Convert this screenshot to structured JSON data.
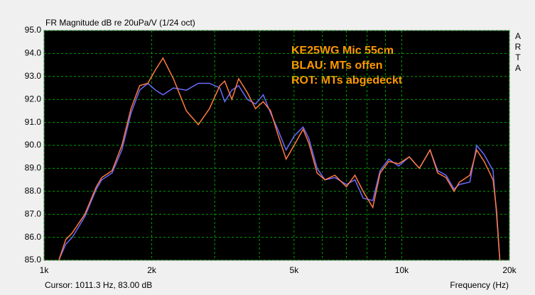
{
  "chart_data": {
    "type": "line",
    "title": "FR Magnitude dB re 20uPa/V (1/24 oct)",
    "annotations": [
      "KE25WG Mic 55cm",
      "BLAU: MTs offen",
      "ROT: MTs abgedeckt"
    ],
    "cursor": "Cursor: 1011.3 Hz, 83.00 dB",
    "x_label": "Frequency (Hz)",
    "side_label": "ARTA",
    "x_scale": "log",
    "grid": true,
    "grid_color": "#00a000",
    "xlim": [
      1000,
      20000
    ],
    "ylim": [
      85,
      95
    ],
    "xticks": [
      {
        "value": 1000,
        "label": "1k"
      },
      {
        "value": 2000,
        "label": "2k"
      },
      {
        "value": 5000,
        "label": "5k"
      },
      {
        "value": 10000,
        "label": "10k"
      },
      {
        "value": 20000,
        "label": "20k"
      }
    ],
    "xgrid": [
      3000,
      4000,
      6000,
      7000,
      8000,
      9000
    ],
    "yticks": [
      {
        "value": 85,
        "label": "85.0"
      },
      {
        "value": 86,
        "label": "86.0"
      },
      {
        "value": 87,
        "label": "87.0"
      },
      {
        "value": 88,
        "label": "88.0"
      },
      {
        "value": 89,
        "label": "89.0"
      },
      {
        "value": 90,
        "label": "90.0"
      },
      {
        "value": 91,
        "label": "91.0"
      },
      {
        "value": 92,
        "label": "92.0"
      },
      {
        "value": 93,
        "label": "93.0"
      },
      {
        "value": 94,
        "label": "94.0"
      },
      {
        "value": 95,
        "label": "95.0"
      }
    ],
    "x": [
      1100,
      1150,
      1200,
      1300,
      1400,
      1450,
      1550,
      1650,
      1750,
      1850,
      1950,
      2050,
      2150,
      2300,
      2500,
      2700,
      2900,
      3100,
      3200,
      3350,
      3500,
      3700,
      3900,
      4100,
      4300,
      4500,
      4750,
      5000,
      5300,
      5500,
      5800,
      6100,
      6500,
      7000,
      7400,
      7800,
      8300,
      8700,
      9200,
      9800,
      10500,
      11200,
      12000,
      12600,
      13300,
      14000,
      14500,
      15500,
      16200,
      17000,
      18000,
      18400,
      18800
    ],
    "series": [
      {
        "color": "#6a6aff",
        "values": [
          85.0,
          85.7,
          86.0,
          86.9,
          88.1,
          88.5,
          88.8,
          89.8,
          91.4,
          92.4,
          92.7,
          92.4,
          92.2,
          92.5,
          92.4,
          92.7,
          92.7,
          92.5,
          91.9,
          92.4,
          92.6,
          92.0,
          91.8,
          92.2,
          91.4,
          90.7,
          89.8,
          90.4,
          90.8,
          90.3,
          89.0,
          88.5,
          88.6,
          88.3,
          88.5,
          87.7,
          87.6,
          88.9,
          89.4,
          89.1,
          89.5,
          89.0,
          89.8,
          88.9,
          88.7,
          88.1,
          88.3,
          88.4,
          90.0,
          89.6,
          88.9,
          87.0,
          85.0
        ]
      },
      {
        "color": "#ff7a40",
        "values": [
          85.0,
          85.9,
          86.2,
          87.0,
          88.2,
          88.6,
          88.9,
          90.0,
          91.6,
          92.6,
          92.7,
          93.3,
          93.8,
          92.9,
          91.5,
          90.9,
          91.6,
          92.6,
          92.8,
          92.0,
          92.9,
          92.3,
          91.6,
          91.9,
          91.5,
          90.5,
          89.4,
          90.0,
          90.7,
          90.1,
          88.8,
          88.5,
          88.7,
          88.2,
          88.7,
          88.0,
          87.3,
          88.8,
          89.3,
          89.2,
          89.5,
          89.0,
          89.8,
          88.8,
          88.6,
          88.0,
          88.4,
          88.7,
          89.8,
          89.3,
          88.5,
          87.2,
          85.0
        ]
      }
    ]
  }
}
